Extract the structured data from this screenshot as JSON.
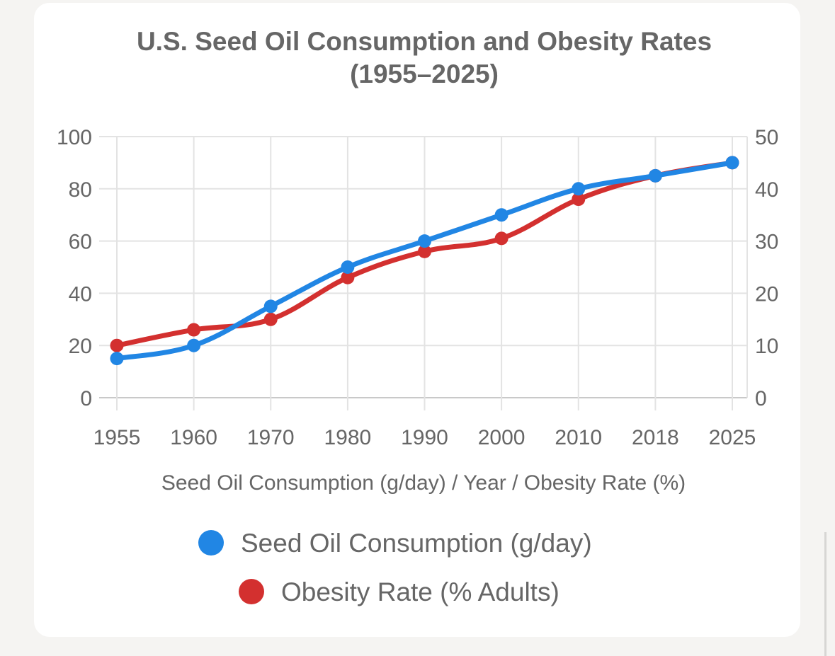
{
  "chart_data": {
    "type": "line",
    "title_line1": "U.S. Seed Oil Consumption and Obesity Rates",
    "title_line2": "(1955–2025)",
    "xlabel": "Seed Oil Consumption (g/day) / Year / Obesity Rate (%)",
    "categories": [
      "1955",
      "1960",
      "1970",
      "1980",
      "1990",
      "2000",
      "2010",
      "2018",
      "2025"
    ],
    "y_left": {
      "ylim": [
        0,
        100
      ],
      "ticks": [
        "0",
        "20",
        "40",
        "60",
        "80",
        "100"
      ]
    },
    "y_right": {
      "ylim": [
        0,
        50
      ],
      "ticks": [
        "0",
        "10",
        "20",
        "30",
        "40",
        "50"
      ]
    },
    "grid": true,
    "legend_position": "bottom",
    "series": [
      {
        "name": "Seed Oil Consumption (g/day)",
        "axis": "left",
        "color": "#2186e4",
        "values": [
          15,
          20,
          35,
          50,
          60,
          70,
          80,
          85,
          90
        ]
      },
      {
        "name": "Obesity Rate (% Adults)",
        "axis": "right",
        "color": "#d3302f",
        "values": [
          10,
          13,
          15,
          23,
          28,
          30.5,
          38,
          42.5,
          45
        ]
      }
    ]
  }
}
